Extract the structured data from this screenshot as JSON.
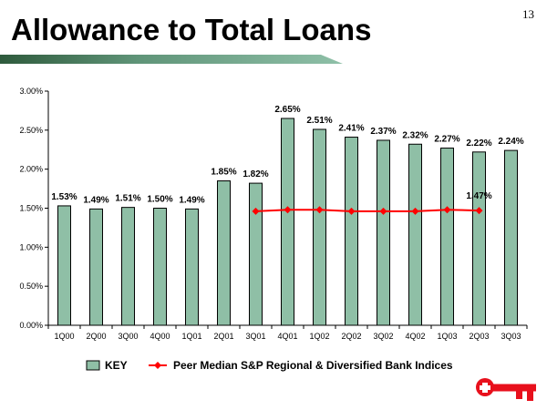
{
  "page_number": "13",
  "title": "Allowance to Total Loans",
  "chart_data": {
    "type": "bar",
    "title": "Allowance to Total Loans",
    "categories": [
      "1Q00",
      "2Q00",
      "3Q00",
      "4Q00",
      "1Q01",
      "2Q01",
      "3Q01",
      "4Q01",
      "1Q02",
      "2Q02",
      "3Q02",
      "4Q02",
      "1Q03",
      "2Q03",
      "3Q03"
    ],
    "series": [
      {
        "name": "KEY",
        "type": "bar",
        "color": "#8fbfa6",
        "values": [
          1.53,
          1.49,
          1.51,
          1.5,
          1.49,
          1.85,
          1.82,
          2.65,
          2.51,
          2.41,
          2.37,
          2.32,
          2.27,
          2.22,
          2.24
        ],
        "labels": [
          "1.53%",
          "1.49%",
          "1.51%",
          "1.50%",
          "1.49%",
          "1.85%",
          "1.82%",
          "2.65%",
          "2.51%",
          "2.41%",
          "2.37%",
          "2.32%",
          "2.27%",
          "2.22%",
          "2.24%"
        ]
      },
      {
        "name": "Peer Median S&P Regional & Diversified Bank Indices",
        "type": "line",
        "color": "#ff0000",
        "values": [
          null,
          null,
          null,
          null,
          null,
          null,
          1.46,
          1.48,
          1.48,
          1.46,
          1.46,
          1.46,
          1.48,
          1.47,
          null
        ],
        "end_label": "1.47%"
      }
    ],
    "ylim": [
      0,
      3
    ],
    "yticks": [
      "0.00%",
      "0.50%",
      "1.00%",
      "1.50%",
      "2.00%",
      "2.50%",
      "3.00%"
    ],
    "legend": "bottom",
    "grid": false
  }
}
